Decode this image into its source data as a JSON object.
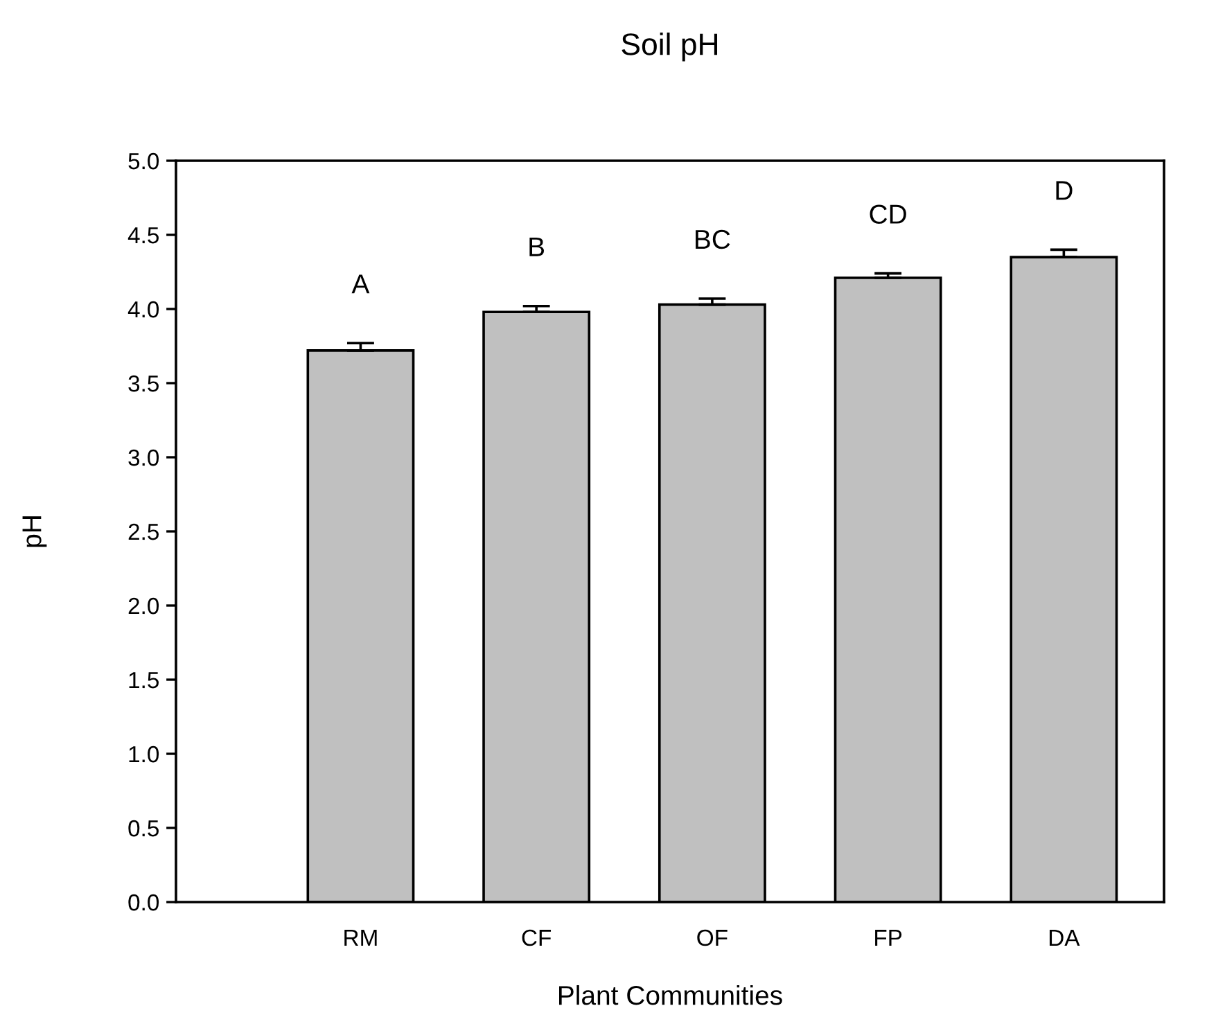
{
  "chart_data": {
    "type": "bar",
    "title": "Soil pH",
    "xlabel": "Plant Communities",
    "ylabel": "pH",
    "categories": [
      "RM",
      "CF",
      "OF",
      "FP",
      "DA"
    ],
    "values": [
      3.72,
      3.98,
      4.03,
      4.21,
      4.35
    ],
    "errors": [
      0.05,
      0.04,
      0.04,
      0.03,
      0.05
    ],
    "color": "#c0c0c0",
    "ylim": [
      0,
      5
    ],
    "yticks": [
      {
        "value": 0,
        "label": "0.0"
      },
      {
        "value": 0.5,
        "label": "0.5"
      },
      {
        "value": 1,
        "label": "1.0"
      },
      {
        "value": 1.5,
        "label": "1.5"
      },
      {
        "value": 2,
        "label": "2.0"
      },
      {
        "value": 2.5,
        "label": "2.5"
      },
      {
        "value": 3,
        "label": "3.0"
      },
      {
        "value": 3.5,
        "label": "3.5"
      },
      {
        "value": 4,
        "label": "4.0"
      },
      {
        "value": 4.5,
        "label": "4.5"
      },
      {
        "value": 5,
        "label": "5.0"
      }
    ],
    "grid": false,
    "annotations": [
      "A",
      "B",
      "BC",
      "CD",
      "D"
    ]
  }
}
